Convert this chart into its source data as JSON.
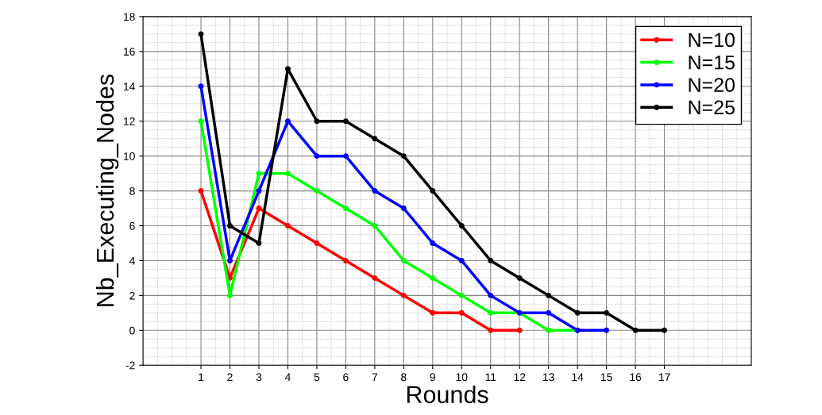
{
  "chart_data": {
    "type": "line",
    "xlabel": "Rounds",
    "ylabel": "Nb_Executing_Nodes",
    "xlim": [
      -1,
      20
    ],
    "xticks": [
      1,
      2,
      3,
      4,
      5,
      6,
      7,
      8,
      9,
      10,
      11,
      12,
      13,
      14,
      15,
      16,
      17
    ],
    "ylim": [
      -2,
      18
    ],
    "yticks": [
      -2,
      0,
      2,
      4,
      6,
      8,
      10,
      12,
      14,
      16,
      18
    ],
    "grid": true,
    "legend": "top right",
    "marker": "circle",
    "line_style": "solid",
    "series": [
      {
        "name": "N=10",
        "color": "#ff0000",
        "x": [
          1,
          2,
          3,
          4,
          5,
          6,
          7,
          8,
          9,
          10,
          11,
          12
        ],
        "values": [
          8,
          3,
          7,
          6,
          5,
          4,
          3,
          2,
          1,
          1,
          0,
          0
        ]
      },
      {
        "name": "N=15",
        "color": "#00ff00",
        "x": [
          1,
          2,
          3,
          4,
          5,
          6,
          7,
          8,
          9,
          10,
          11,
          12,
          13,
          14
        ],
        "values": [
          12,
          2,
          9,
          9,
          8,
          7,
          6,
          4,
          3,
          2,
          1,
          1,
          0,
          0
        ]
      },
      {
        "name": "N=20",
        "color": "#0000ff",
        "x": [
          1,
          2,
          3,
          4,
          5,
          6,
          7,
          8,
          9,
          10,
          11,
          12,
          13,
          14,
          15
        ],
        "values": [
          14,
          4,
          8,
          12,
          10,
          10,
          8,
          7,
          5,
          4,
          2,
          1,
          1,
          0,
          0
        ]
      },
      {
        "name": "N=25",
        "color": "#000000",
        "x": [
          1,
          2,
          3,
          4,
          5,
          6,
          7,
          8,
          9,
          10,
          11,
          12,
          13,
          14,
          15,
          16,
          17
        ],
        "values": [
          17,
          6,
          5,
          15,
          12,
          12,
          11,
          10,
          8,
          6,
          4,
          3,
          2,
          1,
          1,
          0,
          0
        ]
      }
    ]
  }
}
